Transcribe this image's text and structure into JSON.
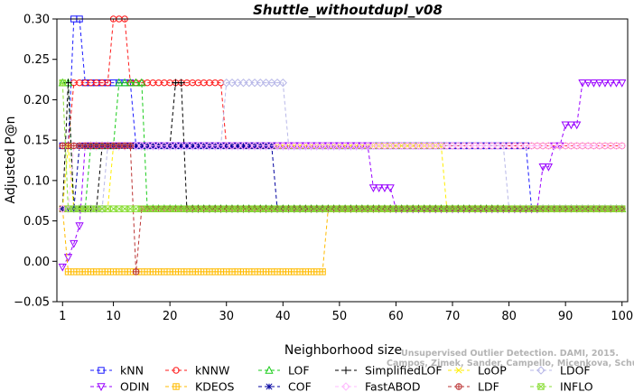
{
  "chart_data": {
    "type": "line",
    "title": "Shuttle_withoutdupl_v08",
    "xlabel": "Neighborhood size",
    "ylabel": "Adjusted P@n",
    "xlim": [
      0,
      101
    ],
    "ylim": [
      -0.05,
      0.3
    ],
    "xticks": [
      "1",
      "10",
      "20",
      "30",
      "40",
      "50",
      "60",
      "70",
      "80",
      "90",
      "100"
    ],
    "yticks": [
      "−0.05",
      "0.00",
      "0.05",
      "0.10",
      "0.15",
      "0.20",
      "0.25",
      "0.30"
    ],
    "grid": false,
    "legend_position": "bottom",
    "series": [
      {
        "name": "kNN",
        "color": "#1a1aff",
        "marker": "square",
        "segments": [
          [
            1,
            0.143
          ],
          [
            2,
            0.143
          ],
          [
            3,
            0.3
          ],
          [
            4,
            0.3
          ],
          [
            5,
            0.221
          ],
          [
            13,
            0.221
          ],
          [
            14,
            0.143
          ],
          [
            83,
            0.143
          ],
          [
            84,
            0.065
          ],
          [
            100,
            0.065
          ]
        ]
      },
      {
        "name": "kNNW",
        "color": "#ff1a1a",
        "marker": "circle",
        "segments": [
          [
            1,
            0.143
          ],
          [
            2,
            0.143
          ],
          [
            3,
            0.221
          ],
          [
            9,
            0.221
          ],
          [
            10,
            0.3
          ],
          [
            12,
            0.3
          ],
          [
            13,
            0.221
          ],
          [
            29,
            0.221
          ],
          [
            30,
            0.143
          ],
          [
            100,
            0.143
          ]
        ]
      },
      {
        "name": "LOF",
        "color": "#1acc1a",
        "marker": "triangle-up",
        "segments": [
          [
            1,
            0.221
          ],
          [
            2,
            0.221
          ],
          [
            3,
            0.065
          ],
          [
            5,
            0.065
          ],
          [
            6,
            0.143
          ],
          [
            10,
            0.143
          ],
          [
            11,
            0.221
          ],
          [
            15,
            0.221
          ],
          [
            16,
            0.065
          ],
          [
            100,
            0.065
          ]
        ]
      },
      {
        "name": "SimplifiedLOF",
        "color": "#000000",
        "marker": "plus",
        "segments": [
          [
            1,
            0.065
          ],
          [
            2,
            0.221
          ],
          [
            3,
            0.065
          ],
          [
            7,
            0.065
          ],
          [
            8,
            0.143
          ],
          [
            20,
            0.143
          ],
          [
            21,
            0.221
          ],
          [
            22,
            0.221
          ],
          [
            23,
            0.065
          ],
          [
            100,
            0.065
          ]
        ]
      },
      {
        "name": "LoOP",
        "color": "#ffee00",
        "marker": "x",
        "segments": [
          [
            1,
            0.065
          ],
          [
            2,
            0.143
          ],
          [
            3,
            0.065
          ],
          [
            9,
            0.065
          ],
          [
            10,
            0.143
          ],
          [
            68,
            0.143
          ],
          [
            69,
            0.065
          ],
          [
            100,
            0.065
          ]
        ]
      },
      {
        "name": "LDOF",
        "color": "#b8b8e8",
        "marker": "diamond",
        "segments": [
          [
            1,
            0.065
          ],
          [
            8,
            0.065
          ],
          [
            9,
            0.143
          ],
          [
            29,
            0.143
          ],
          [
            30,
            0.221
          ],
          [
            40,
            0.221
          ],
          [
            41,
            0.143
          ],
          [
            79,
            0.143
          ],
          [
            80,
            0.065
          ],
          [
            100,
            0.065
          ]
        ]
      },
      {
        "name": "ODIN",
        "color": "#9900ff",
        "marker": "triangle-down",
        "segments": [
          [
            1,
            -0.007
          ],
          [
            2,
            0.005
          ],
          [
            3,
            0.022
          ],
          [
            4,
            0.044
          ],
          [
            5,
            0.143
          ],
          [
            55,
            0.143
          ],
          [
            56,
            0.091
          ],
          [
            59,
            0.091
          ],
          [
            60,
            0.065
          ],
          [
            85,
            0.065
          ],
          [
            86,
            0.117
          ],
          [
            87,
            0.117
          ],
          [
            88,
            0.143
          ],
          [
            89,
            0.143
          ],
          [
            90,
            0.169
          ],
          [
            92,
            0.169
          ],
          [
            93,
            0.221
          ],
          [
            100,
            0.221
          ]
        ]
      },
      {
        "name": "KDEOS",
        "color": "#ffbb00",
        "marker": "square-cross",
        "segments": [
          [
            1,
            0.065
          ],
          [
            2,
            -0.013
          ],
          [
            47,
            -0.013
          ],
          [
            48,
            0.065
          ],
          [
            100,
            0.065
          ]
        ]
      },
      {
        "name": "COF",
        "color": "#00009f",
        "marker": "asterisk",
        "segments": [
          [
            1,
            0.065
          ],
          [
            3,
            0.065
          ],
          [
            4,
            0.143
          ],
          [
            38,
            0.143
          ],
          [
            39,
            0.065
          ],
          [
            100,
            0.065
          ]
        ]
      },
      {
        "name": "FastABOD",
        "color": "#ffbbff",
        "marker": "diamond",
        "segments": [
          [
            1,
            0.065
          ],
          [
            2,
            0.065
          ],
          [
            3,
            0.143
          ],
          [
            100,
            0.143
          ]
        ]
      },
      {
        "name": "LDF",
        "color": "#bb3333",
        "marker": "circle-plus",
        "segments": [
          [
            1,
            0.143
          ],
          [
            13,
            0.143
          ],
          [
            14,
            -0.013
          ],
          [
            15,
            0.065
          ],
          [
            100,
            0.065
          ]
        ]
      },
      {
        "name": "INFLO",
        "color": "#88dd33",
        "marker": "square-x",
        "segments": [
          [
            1,
            0.221
          ],
          [
            2,
            0.065
          ],
          [
            100,
            0.065
          ]
        ]
      }
    ]
  },
  "watermark": {
    "line1": "Unsupervised Outlier Detection. DAMI, 2015.",
    "line2": "Campos, Zimek, Sander, Campello, Micenkova, Schubert, Assent, Houle"
  }
}
